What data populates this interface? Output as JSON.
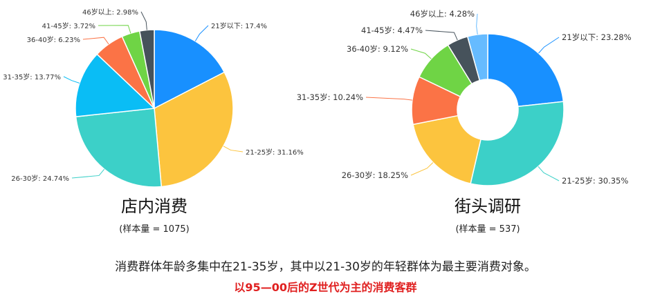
{
  "colors": [
    "#1890ff",
    "#fcc43e",
    "#3cd0c8",
    "#0abdf5",
    "#fb7346",
    "#6fd445",
    "#46525b"
  ],
  "chart_data": [
    {
      "type": "pie",
      "title": "店内消费",
      "subtitle": "(样本量 = 1075)",
      "categories": [
        "21岁以下",
        "21-25岁",
        "26-30岁",
        "31-35岁",
        "36-40岁",
        "41-45岁",
        "46岁以上"
      ],
      "values": [
        17.4,
        31.16,
        24.74,
        13.77,
        6.23,
        3.72,
        2.98
      ],
      "labels": [
        "21岁以下: 17.4%",
        "21-25岁: 31.16%",
        "26-30岁: 24.74%",
        "31-35岁: 13.77%",
        "36-40岁: 6.23%",
        "41-45岁: 3.72%",
        "46岁以上: 2.98%"
      ],
      "colors": [
        "#1890ff",
        "#fcc43e",
        "#3cd0c8",
        "#0abdf5",
        "#fb7346",
        "#6fd445",
        "#46525b"
      ]
    },
    {
      "type": "pie",
      "title": "街头调研",
      "subtitle": "(样本量 = 537)",
      "categories": [
        "21岁以下",
        "21-25岁",
        "26-30岁",
        "31-35岁",
        "36-40岁",
        "41-45岁",
        "46岁以上"
      ],
      "values": [
        23.28,
        30.35,
        18.25,
        10.24,
        9.12,
        4.47,
        4.28
      ],
      "labels": [
        "21岁以下: 23.28%",
        "21-25岁: 30.35%",
        "26-30岁: 18.25%",
        "31-35岁: 10.24%",
        "36-40岁: 9.12%",
        "41-45岁: 4.47%",
        "46岁以上: 4.28%"
      ],
      "colors": [
        "#1890ff",
        "#3cd0c8",
        "#fcc43e",
        "#fb7346",
        "#6fd445",
        "#46525b",
        "#66bbff"
      ]
    }
  ],
  "caption": {
    "summary": "消费群体年龄多集中在21-35岁，其中以21-30岁的年轻群体为最主要消费对象。",
    "highlight": "以95—00后的Z世代为主的消费客群"
  }
}
